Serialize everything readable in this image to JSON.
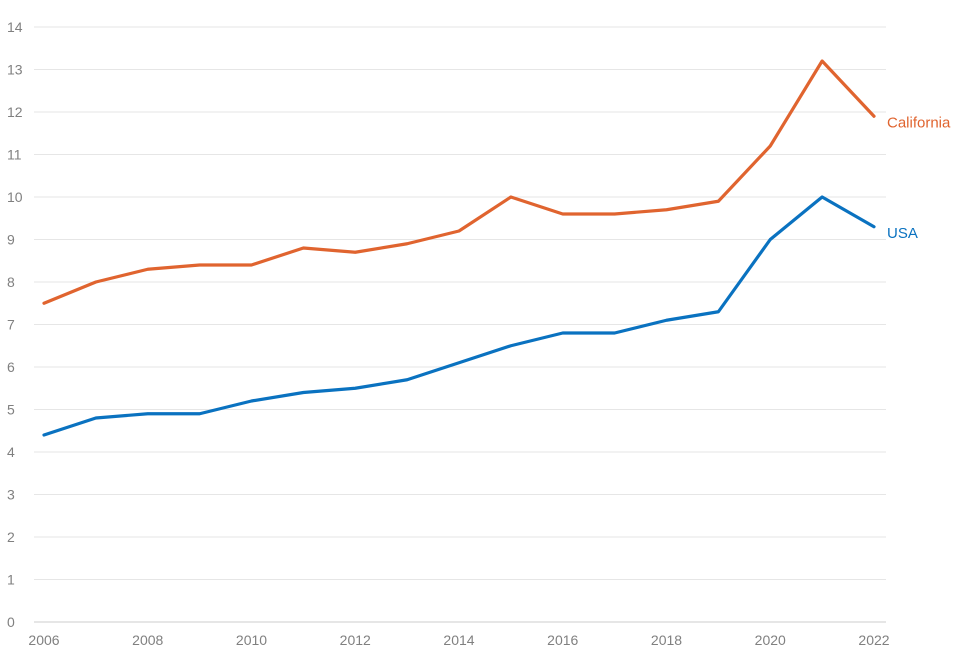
{
  "chart_data": {
    "type": "line",
    "title": "",
    "xlabel": "",
    "ylabel": "",
    "x": [
      2006,
      2007,
      2008,
      2009,
      2010,
      2011,
      2012,
      2013,
      2014,
      2015,
      2016,
      2017,
      2018,
      2019,
      2020,
      2021,
      2022
    ],
    "xticks": [
      "2006",
      "2008",
      "2010",
      "2012",
      "2014",
      "2016",
      "2018",
      "2020",
      "2022"
    ],
    "yticks": [
      "0",
      "1",
      "2",
      "3",
      "4",
      "5",
      "6",
      "7",
      "8",
      "9",
      "10",
      "11",
      "12",
      "13",
      "14"
    ],
    "ylim": [
      0,
      14
    ],
    "xlim": [
      2006,
      2022
    ],
    "grid": true,
    "legend": "inline labels at line ends",
    "series": [
      {
        "name": "California",
        "color": "#e0642f",
        "values": [
          7.5,
          8.0,
          8.3,
          8.4,
          8.4,
          8.8,
          8.7,
          8.9,
          9.2,
          10.0,
          9.6,
          9.6,
          9.7,
          9.9,
          11.2,
          13.2,
          11.9
        ]
      },
      {
        "name": "USA",
        "color": "#0a72c0",
        "values": [
          4.4,
          4.8,
          4.9,
          4.9,
          5.2,
          5.4,
          5.5,
          5.7,
          6.1,
          6.5,
          6.8,
          6.8,
          7.1,
          7.3,
          9.0,
          10.0,
          9.3
        ]
      }
    ]
  }
}
